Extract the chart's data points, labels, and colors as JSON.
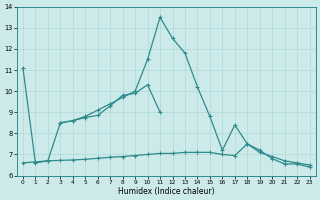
{
  "xlabel": "Humidex (Indice chaleur)",
  "color": "#2e8b8b",
  "bg_color": "#cdeaea",
  "grid_color": "#b0d8d8",
  "ylim": [
    6,
    14
  ],
  "xlim": [
    -0.5,
    23.5
  ],
  "yticks": [
    6,
    7,
    8,
    9,
    10,
    11,
    12,
    13,
    14
  ],
  "xticks": [
    0,
    1,
    2,
    3,
    4,
    5,
    6,
    7,
    8,
    9,
    10,
    11,
    12,
    13,
    14,
    15,
    16,
    17,
    18,
    19,
    20,
    21,
    22,
    23
  ],
  "line_main": {
    "x": [
      0,
      1,
      2,
      3,
      4,
      5,
      6,
      7,
      8,
      9,
      10,
      11,
      12,
      13,
      14,
      15,
      16,
      17,
      18,
      19,
      20,
      21,
      22,
      23
    ],
    "y": [
      11.1,
      6.6,
      6.7,
      8.5,
      8.6,
      8.8,
      9.1,
      9.4,
      9.7,
      10.0,
      11.5,
      13.5,
      12.5,
      11.8,
      10.2,
      8.8,
      7.2,
      8.4,
      7.5,
      7.2,
      6.8,
      6.55,
      6.55,
      6.4
    ]
  },
  "line_mid": {
    "x": [
      3,
      4,
      5,
      6,
      7,
      8,
      9,
      10,
      11
    ],
    "y": [
      8.5,
      8.6,
      8.75,
      8.85,
      9.3,
      9.8,
      9.9,
      10.3,
      9.0
    ]
  },
  "line_flat": {
    "x": [
      0,
      1,
      2,
      3,
      4,
      5,
      6,
      7,
      8,
      9,
      10,
      11,
      12,
      13,
      14,
      15,
      16,
      17,
      18,
      19,
      20,
      21,
      22,
      23
    ],
    "y": [
      6.6,
      6.65,
      6.7,
      6.72,
      6.74,
      6.77,
      6.82,
      6.87,
      6.9,
      6.95,
      7.0,
      7.05,
      7.05,
      7.1,
      7.1,
      7.1,
      7.0,
      6.95,
      7.5,
      7.1,
      6.9,
      6.7,
      6.6,
      6.5
    ]
  }
}
